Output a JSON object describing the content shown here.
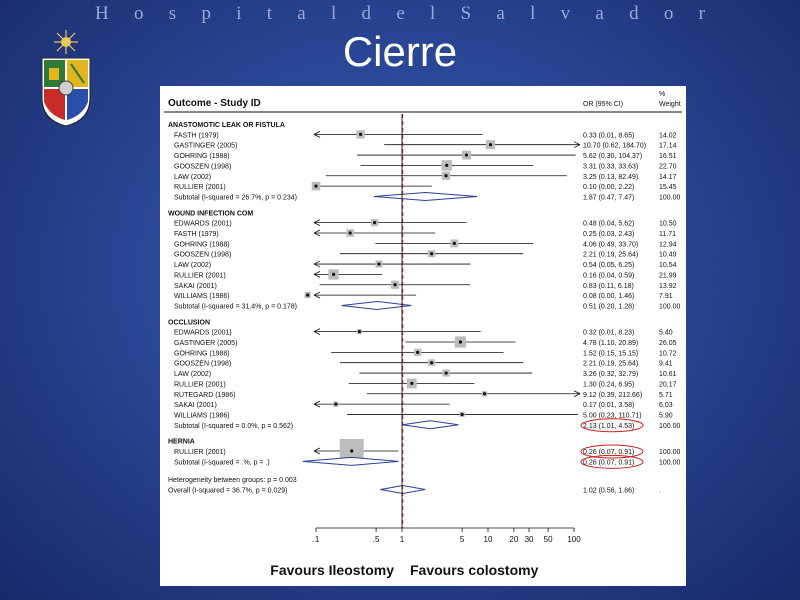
{
  "header": {
    "text": "Hospital del Salvador"
  },
  "slide_title": "Cierre",
  "logo": {
    "icon": "university-coat-of-arms-icon"
  },
  "colors": {
    "background": "#2a4796",
    "highlight": "#d02020",
    "null_line": "#7a2020"
  },
  "chart_data": {
    "type": "forest",
    "column_headers": {
      "study": "Outcome - Study ID",
      "or": "OR (95% CI)",
      "weight_line1": "%",
      "weight_line2": "Weight"
    },
    "x_scale": "log",
    "x_ticks": [
      ".1",
      ".5",
      "1",
      "5",
      "10",
      "20",
      "30",
      "50",
      "100"
    ],
    "x_tick_values": [
      0.1,
      0.5,
      1,
      5,
      10,
      20,
      30,
      50,
      100
    ],
    "favours_left": "Favours Ileostomy",
    "favours_right": "Favours colostomy",
    "groups": [
      {
        "name": "ANASTOMOTIC LEAK OR FISTULA",
        "studies": [
          {
            "label": "FASTH (1979)",
            "or": 0.33,
            "lo": 0.01,
            "hi": 8.65,
            "ci": "0.33 (0.01, 8.65)",
            "weight": "14.02"
          },
          {
            "label": "GASTINGER (2005)",
            "or": 10.7,
            "lo": 0.62,
            "hi": 184.7,
            "ci": "10.70 (0.62, 184.70)",
            "weight": "17.14"
          },
          {
            "label": "GOHRING (1988)",
            "or": 5.62,
            "lo": 0.3,
            "hi": 104.37,
            "ci": "5.62 (0.30, 104.37)",
            "weight": "16.51"
          },
          {
            "label": "GOOSZEN (1998)",
            "or": 3.31,
            "lo": 0.33,
            "hi": 33.63,
            "ci": "3.31 (0.33, 33.63)",
            "weight": "22.70"
          },
          {
            "label": "LAW (2002)",
            "or": 3.25,
            "lo": 0.13,
            "hi": 82.49,
            "ci": "3.25 (0.13, 82.49)",
            "weight": "14.17"
          },
          {
            "label": "RULLIER (2001)",
            "or": 0.1,
            "lo": 0.0,
            "hi": 2.22,
            "ci": "0.10 (0.00, 2.22)",
            "weight": "15.45"
          }
        ],
        "subtotal": {
          "label": "Subtotal  (I-squared = 26.7%, p = 0.234)",
          "or": 1.87,
          "lo": 0.47,
          "hi": 7.47,
          "ci": "1.87 (0.47, 7.47)",
          "weight": "100.00"
        }
      },
      {
        "name": "WOUND INFECTION COM",
        "studies": [
          {
            "label": "EDWARDS (2001)",
            "or": 0.48,
            "lo": 0.04,
            "hi": 5.62,
            "ci": "0.48 (0.04, 5.62)",
            "weight": "10.50"
          },
          {
            "label": "FASTH (1979)",
            "or": 0.25,
            "lo": 0.03,
            "hi": 2.43,
            "ci": "0.25 (0.03, 2.43)",
            "weight": "11.71"
          },
          {
            "label": "GOHRING (1988)",
            "or": 4.06,
            "lo": 0.49,
            "hi": 33.7,
            "ci": "4.06 (0.49, 33.70)",
            "weight": "12.94"
          },
          {
            "label": "GOOSZEN (1998)",
            "or": 2.21,
            "lo": 0.19,
            "hi": 25.64,
            "ci": "2.21 (0.19, 25.64)",
            "weight": "10.49"
          },
          {
            "label": "LAW (2002)",
            "or": 0.54,
            "lo": 0.05,
            "hi": 6.25,
            "ci": "0.54 (0.05, 6.25)",
            "weight": "10.54"
          },
          {
            "label": "RULLIER (2001)",
            "or": 0.16,
            "lo": 0.04,
            "hi": 0.59,
            "ci": "0.16 (0.04, 0.59)",
            "weight": "21.99"
          },
          {
            "label": "SAKAI (2001)",
            "or": 0.83,
            "lo": 0.11,
            "hi": 6.18,
            "ci": "0.83 (0.11, 6.18)",
            "weight": "13.92"
          },
          {
            "label": "WILLIAMS (1986)",
            "or": 0.08,
            "lo": 0.0,
            "hi": 1.46,
            "ci": "0.08 (0.00, 1.46)",
            "weight": "7.91"
          }
        ],
        "subtotal": {
          "label": "Subtotal  (I-squared = 31.4%, p = 0.178)",
          "or": 0.51,
          "lo": 0.2,
          "hi": 1.28,
          "ci": "0.51 (0.20, 1.28)",
          "weight": "100.00"
        }
      },
      {
        "name": "OCCLUSION",
        "studies": [
          {
            "label": "EDWARDS (2001)",
            "or": 0.32,
            "lo": 0.01,
            "hi": 8.23,
            "ci": "0.32 (0.01, 8.23)",
            "weight": "5.40"
          },
          {
            "label": "GASTINGER (2005)",
            "or": 4.78,
            "lo": 1.1,
            "hi": 20.89,
            "ci": "4.78 (1.10, 20.89)",
            "weight": "26.05"
          },
          {
            "label": "GOHRING (1988)",
            "or": 1.52,
            "lo": 0.15,
            "hi": 15.15,
            "ci": "1.52 (0.15, 15.15)",
            "weight": "10.72"
          },
          {
            "label": "GOOSZEN (1998)",
            "or": 2.21,
            "lo": 0.19,
            "hi": 25.64,
            "ci": "2.21 (0.19, 25.64)",
            "weight": "9.41"
          },
          {
            "label": "LAW (2002)",
            "or": 3.26,
            "lo": 0.32,
            "hi": 32.79,
            "ci": "3.26 (0.32, 32.79)",
            "weight": "10.61"
          },
          {
            "label": "RULLIER (2001)",
            "or": 1.3,
            "lo": 0.24,
            "hi": 6.95,
            "ci": "1.30 (0.24, 6.95)",
            "weight": "20.17"
          },
          {
            "label": "RUTEGARD (1986)",
            "or": 9.12,
            "lo": 0.39,
            "hi": 212.66,
            "ci": "9.12 (0.39, 212.66)",
            "weight": "5.71"
          },
          {
            "label": "SAKAI (2001)",
            "or": 0.17,
            "lo": 0.01,
            "hi": 3.58,
            "ci": "0.17 (0.01, 3.58)",
            "weight": "6.03"
          },
          {
            "label": "WILLIAMS (1986)",
            "or": 5.0,
            "lo": 0.23,
            "hi": 110.71,
            "ci": "5.00 (0.23, 110.71)",
            "weight": "5.90"
          }
        ],
        "subtotal": {
          "label": "Subtotal  (I-squared = 0.0%, p = 0.562)",
          "or": 2.13,
          "lo": 1.01,
          "hi": 4.53,
          "ci": "2.13 (1.01, 4.53)",
          "weight": "100.00",
          "highlighted": true
        }
      },
      {
        "name": "HERNIA",
        "studies": [
          {
            "label": "RULLIER (2001)",
            "or": 0.26,
            "lo": 0.07,
            "hi": 0.91,
            "ci": "0.26 (0.07, 0.91)",
            "weight": "100.00",
            "highlighted": true
          }
        ],
        "subtotal": {
          "label": "Subtotal  (I-squared = .%, p = .)",
          "or": 0.26,
          "lo": 0.07,
          "hi": 0.91,
          "ci": "0.26 (0.07, 0.91)",
          "weight": "100.00",
          "highlighted": true
        }
      }
    ],
    "heterogeneity": "Heterogeneity between groups: p = 0.003",
    "overall": {
      "label": "Overall  (I-squared = 36.7%, p = 0.029)",
      "or": 1.02,
      "lo": 0.56,
      "hi": 1.86,
      "ci": "1.02 (0.56, 1.86)",
      "weight": "."
    }
  }
}
